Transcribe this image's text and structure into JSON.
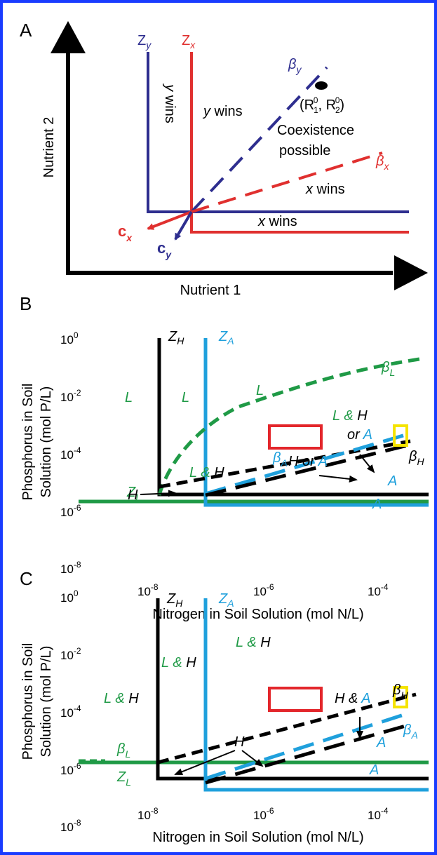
{
  "colors": {
    "border": "#1a3cff",
    "red": "#e0302f",
    "navy": "#2e2e8f",
    "blue": "#1fa0dc",
    "green": "#1f9a46",
    "black": "#000000",
    "yellow": "#f5e400",
    "box_red": "#e3262b"
  },
  "panel_a": {
    "letter": "A",
    "xlabel": "Nutrient 1",
    "ylabel": "Nutrient 2",
    "zy": "Z",
    "zy_sub": "y",
    "zx": "Z",
    "zx_sub": "x",
    "beta_y": "β",
    "beta_y_sub": "y",
    "beta_x": "β",
    "beta_x_sub": "x",
    "r0_label": "(R",
    "r0_sub1": "1",
    "r0_sup": "0",
    "r0_sep": ", R",
    "r0_sub2": "2",
    "r0_end": ")",
    "y_wins_vertical": "y wins",
    "y_wins": "y",
    "wins_word": " wins",
    "coexistence_1": "Coexistence",
    "coexistence_2": "possible",
    "x_wins_upper": "x",
    "x_wins_lower": "x",
    "cx": "c",
    "cx_sub": "x",
    "cy": "c",
    "cy_sub": "y"
  },
  "panel_b": {
    "letter": "B",
    "ylabel_1": "Phosphorus in Soil",
    "ylabel_2": "Solution (mol P/L)",
    "xlabel": "Nitrogen in Soil Solution (mol N/L)",
    "y_ticks": [
      {
        "base": "10",
        "exp": "0"
      },
      {
        "base": "10",
        "exp": "-2"
      },
      {
        "base": "10",
        "exp": "-4"
      },
      {
        "base": "10",
        "exp": "-6"
      },
      {
        "base": "10",
        "exp": "-8"
      }
    ],
    "x_ticks": [
      {
        "base": "10",
        "exp": "-8"
      },
      {
        "base": "10",
        "exp": "-6"
      },
      {
        "base": "10",
        "exp": "-4"
      }
    ],
    "zh": "Z",
    "zh_sub": "H",
    "za": "Z",
    "za_sub": "A",
    "zl": "Z",
    "zl_sub": "L",
    "beta_l": "β",
    "beta_l_sub": "L",
    "beta_a": "β",
    "beta_a_sub": "A",
    "beta_h": "β",
    "beta_h_sub": "H",
    "L": "L",
    "amp": " & ",
    "H": "H",
    "A": "A",
    "or": "or ",
    "or_mid": " or "
  },
  "panel_c": {
    "letter": "C",
    "ylabel_1": "Phosphorus in Soil",
    "ylabel_2": "Solution (mol P/L)",
    "xlabel": "Nitrogen in Soil Solution (mol N/L)",
    "y_ticks": [
      {
        "base": "10",
        "exp": "0"
      },
      {
        "base": "10",
        "exp": "-2"
      },
      {
        "base": "10",
        "exp": "-4"
      },
      {
        "base": "10",
        "exp": "-6"
      },
      {
        "base": "10",
        "exp": "-8"
      }
    ],
    "x_ticks": [
      {
        "base": "10",
        "exp": "-8"
      },
      {
        "base": "10",
        "exp": "-6"
      },
      {
        "base": "10",
        "exp": "-4"
      }
    ],
    "zh": "Z",
    "zh_sub": "H",
    "za": "Z",
    "za_sub": "A",
    "zl": "Z",
    "zl_sub": "L",
    "beta_l": "β",
    "beta_l_sub": "L",
    "beta_a": "β",
    "beta_a_sub": "A",
    "beta_h": "β",
    "beta_h_sub": "H",
    "L": "L",
    "amp": " & ",
    "H": "H",
    "A": "A"
  }
}
